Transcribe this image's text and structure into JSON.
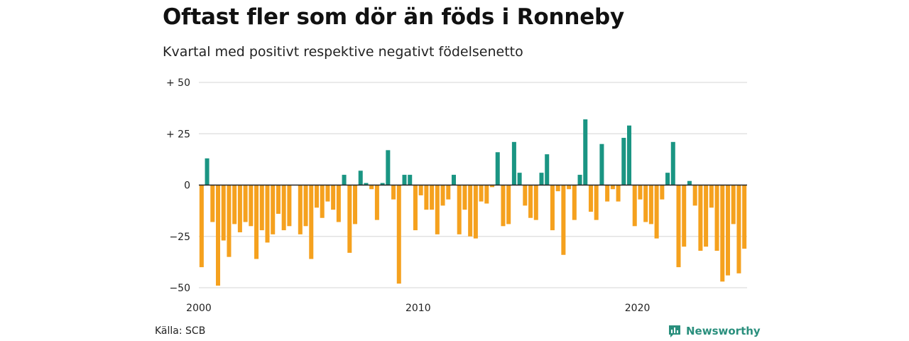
{
  "header": {
    "title": "Oftast fler som dör än föds i Ronneby",
    "subtitle": "Kvartal med positivt respektive negativt födelsenetto"
  },
  "footer": {
    "source": "Källa: SCB",
    "brand": "Newsworthy",
    "brand_icon": "newsworthy-logo-icon"
  },
  "colors": {
    "positive": "#1a9583",
    "negative": "#f5a11e",
    "grid": "#dddddd",
    "zero_line": "#222222"
  },
  "chart_data": {
    "type": "bar",
    "title": "Oftast fler som dör än föds i Ronneby",
    "subtitle": "Kvartal med positivt respektive negativt födelsenetto",
    "x_start": "2000 Q1",
    "x_ticks": [
      {
        "label": "2000",
        "quarter_index": 0
      },
      {
        "label": "2010",
        "quarter_index": 40
      },
      {
        "label": "2020",
        "quarter_index": 80
      }
    ],
    "y_ticks": [
      {
        "value": 50,
        "label": "+ 50"
      },
      {
        "value": 25,
        "label": "+ 25"
      },
      {
        "value": 0,
        "label": "0"
      },
      {
        "value": -25,
        "label": "−25"
      },
      {
        "value": -50,
        "label": "−50"
      }
    ],
    "ylim": [
      -50,
      50
    ],
    "grid": true,
    "values": [
      -40,
      13,
      -18,
      -49,
      -27,
      -35,
      -19,
      -23,
      -18,
      -20,
      -36,
      -22,
      -28,
      -24,
      -14,
      -22,
      -20,
      0,
      -24,
      -20,
      -36,
      -11,
      -16,
      -8,
      -12,
      -18,
      5,
      -33,
      -19,
      7,
      1,
      -2,
      -17,
      1,
      17,
      -7,
      -48,
      5,
      5,
      -22,
      -5,
      -12,
      -12,
      -24,
      -10,
      -7,
      5,
      -24,
      -12,
      -25,
      -26,
      -8,
      -9,
      -1,
      16,
      -20,
      -19,
      21,
      6,
      -10,
      -16,
      -17,
      6,
      15,
      -22,
      -3,
      -34,
      -2,
      -17,
      5,
      32,
      -13,
      -17,
      20,
      -8,
      -2,
      -8,
      23,
      29,
      -20,
      -7,
      -18,
      -19,
      -26,
      -7,
      6,
      21,
      -40,
      -30,
      2,
      -10,
      -32,
      -30,
      -11,
      -32,
      -47,
      -44,
      -19,
      -43,
      -31
    ]
  }
}
